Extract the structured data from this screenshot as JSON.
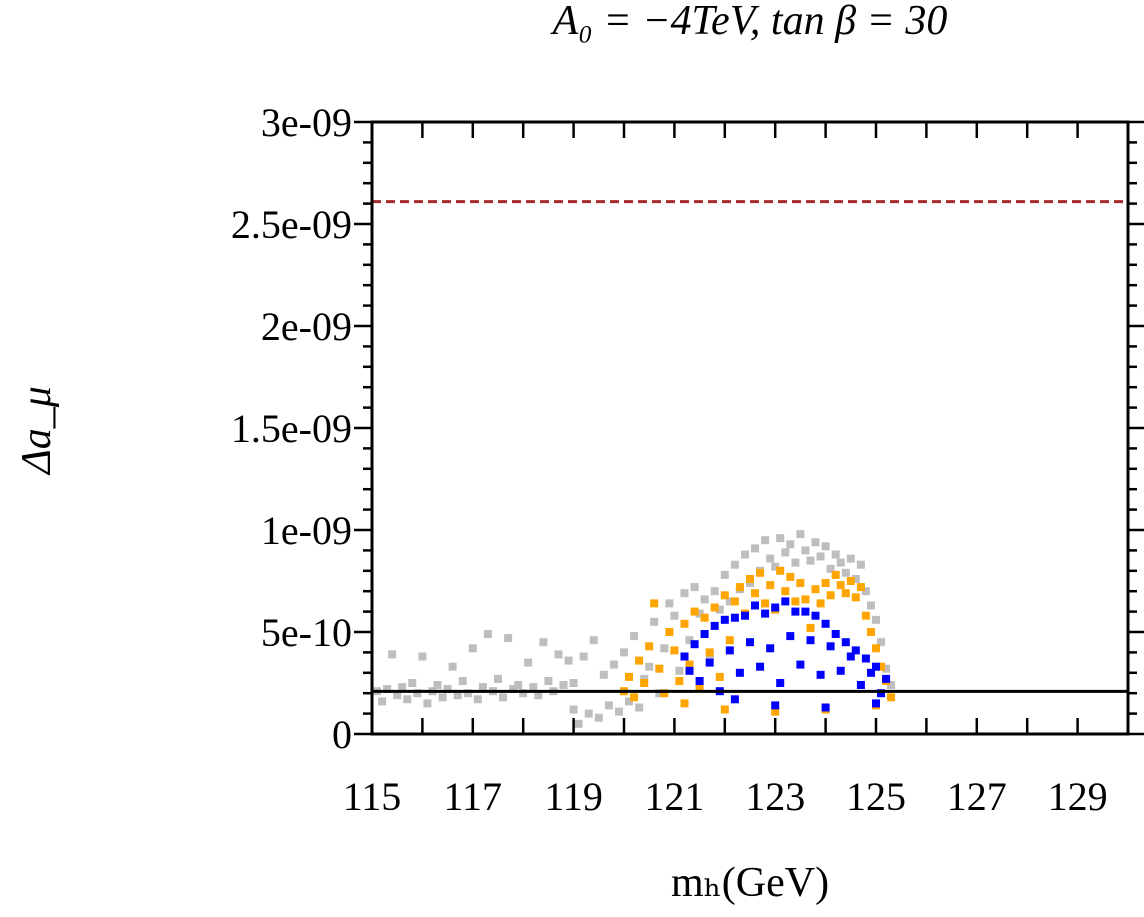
{
  "chart_data": {
    "type": "scatter",
    "title": "A₀ = −4TeV, tan β = 30",
    "xlabel": "mₕ(GeV)",
    "ylabel": "Δa_μ",
    "xlim": [
      115,
      130
    ],
    "ylim": [
      0,
      3e-09
    ],
    "x_ticks": [
      115,
      117,
      119,
      121,
      123,
      125,
      127,
      129
    ],
    "x_tick_labels": [
      "115",
      "117",
      "119",
      "121",
      "123",
      "125",
      "127",
      "129"
    ],
    "y_ticks": [
      0,
      5e-10,
      1e-09,
      1.5e-09,
      2e-09,
      2.5e-09,
      3e-09
    ],
    "y_tick_labels": [
      "0",
      "5e-10",
      "1e-09",
      "1.5e-09",
      "2e-09",
      "2.5e-09",
      "3e-09"
    ],
    "grid": false,
    "reference_lines": [
      {
        "y": 2.09e-10,
        "style": "solid",
        "color": "#000000"
      },
      {
        "y": 2.61e-09,
        "style": "dashed",
        "color": "#a52a2a"
      }
    ],
    "series": [
      {
        "color": "#bebebe",
        "points": [
          [
            115.1,
            2.1e-10
          ],
          [
            115.2,
            1.6e-10
          ],
          [
            115.3,
            2.2e-10
          ],
          [
            115.4,
            3.9e-10
          ],
          [
            115.5,
            1.9e-10
          ],
          [
            115.6,
            2.3e-10
          ],
          [
            115.7,
            1.7e-10
          ],
          [
            115.8,
            2.5e-10
          ],
          [
            115.9,
            2e-10
          ],
          [
            116.0,
            3.8e-10
          ],
          [
            116.1,
            1.5e-10
          ],
          [
            116.2,
            2.1e-10
          ],
          [
            116.3,
            2.4e-10
          ],
          [
            116.4,
            1.8e-10
          ],
          [
            116.5,
            2.2e-10
          ],
          [
            116.6,
            3.3e-10
          ],
          [
            116.7,
            1.9e-10
          ],
          [
            116.8,
            2.6e-10
          ],
          [
            116.9,
            2e-10
          ],
          [
            117.0,
            4.2e-10
          ],
          [
            117.1,
            1.7e-10
          ],
          [
            117.2,
            2.3e-10
          ],
          [
            117.3,
            4.9e-10
          ],
          [
            117.4,
            2.1e-10
          ],
          [
            117.5,
            2.7e-10
          ],
          [
            117.6,
            1.8e-10
          ],
          [
            117.7,
            4.7e-10
          ],
          [
            117.8,
            2.2e-10
          ],
          [
            117.9,
            2.4e-10
          ],
          [
            118.0,
            2e-10
          ],
          [
            118.1,
            3.5e-10
          ],
          [
            118.2,
            2.3e-10
          ],
          [
            118.3,
            1.9e-10
          ],
          [
            118.4,
            4.5e-10
          ],
          [
            118.5,
            2.6e-10
          ],
          [
            118.6,
            2.1e-10
          ],
          [
            118.7,
            3.9e-10
          ],
          [
            118.8,
            2.4e-10
          ],
          [
            118.9,
            3.6e-10
          ],
          [
            119.0,
            1.2e-10
          ],
          [
            119.0,
            2.5e-10
          ],
          [
            119.1,
            5e-11
          ],
          [
            119.2,
            3.8e-10
          ],
          [
            119.3,
            1e-10
          ],
          [
            119.4,
            4.6e-10
          ],
          [
            119.5,
            8e-11
          ],
          [
            119.6,
            2.9e-10
          ],
          [
            119.7,
            1.4e-10
          ],
          [
            119.8,
            3.4e-10
          ],
          [
            119.9,
            1.1e-10
          ],
          [
            120.0,
            4e-10
          ],
          [
            120.1,
            1.6e-10
          ],
          [
            120.2,
            4.8e-10
          ],
          [
            120.3,
            1.3e-10
          ],
          [
            120.4,
            2.7e-10
          ],
          [
            120.5,
            3.3e-10
          ],
          [
            120.6,
            5.5e-10
          ],
          [
            120.7,
            2e-10
          ],
          [
            120.8,
            4.2e-10
          ],
          [
            120.9,
            6.4e-10
          ],
          [
            121.0,
            5.8e-10
          ],
          [
            121.1,
            3.1e-10
          ],
          [
            121.2,
            6.9e-10
          ],
          [
            121.3,
            4.6e-10
          ],
          [
            121.4,
            7.2e-10
          ],
          [
            121.5,
            5.9e-10
          ],
          [
            121.6,
            6.6e-10
          ],
          [
            121.7,
            3.8e-10
          ],
          [
            121.8,
            7e-10
          ],
          [
            121.9,
            6.1e-10
          ],
          [
            122.0,
            7.8e-10
          ],
          [
            122.1,
            6.5e-10
          ],
          [
            122.2,
            8.3e-10
          ],
          [
            122.3,
            7.1e-10
          ],
          [
            122.4,
            8.8e-10
          ],
          [
            122.5,
            7.4e-10
          ],
          [
            122.6,
            9.1e-10
          ],
          [
            122.7,
            8e-10
          ],
          [
            122.8,
            9.5e-10
          ],
          [
            122.9,
            8.6e-10
          ],
          [
            123.0,
            8.2e-10
          ],
          [
            123.1,
            9.6e-10
          ],
          [
            123.2,
            8.9e-10
          ],
          [
            123.3,
            9.3e-10
          ],
          [
            123.4,
            8.4e-10
          ],
          [
            123.5,
            9.8e-10
          ],
          [
            123.6,
            9e-10
          ],
          [
            123.7,
            8.5e-10
          ],
          [
            123.8,
            9.4e-10
          ],
          [
            123.9,
            8.7e-10
          ],
          [
            124.0,
            9.2e-10
          ],
          [
            124.1,
            8.1e-10
          ],
          [
            124.2,
            8.8e-10
          ],
          [
            124.3,
            8.4e-10
          ],
          [
            124.4,
            7.9e-10
          ],
          [
            124.5,
            8.6e-10
          ],
          [
            124.6,
            7.6e-10
          ],
          [
            124.7,
            8.3e-10
          ],
          [
            124.8,
            7e-10
          ],
          [
            124.9,
            6.3e-10
          ],
          [
            125.0,
            5.6e-10
          ],
          [
            125.1,
            4.5e-10
          ],
          [
            125.2,
            3.2e-10
          ],
          [
            125.3,
            2.4e-10
          ]
        ]
      },
      {
        "color": "#ffa500",
        "points": [
          [
            120.0,
            2.1e-10
          ],
          [
            120.1,
            2.8e-10
          ],
          [
            120.2,
            1.8e-10
          ],
          [
            120.3,
            3.6e-10
          ],
          [
            120.4,
            2.5e-10
          ],
          [
            120.5,
            4.3e-10
          ],
          [
            120.6,
            6.4e-10
          ],
          [
            120.7,
            3.2e-10
          ],
          [
            120.8,
            2e-10
          ],
          [
            120.9,
            5e-10
          ],
          [
            121.0,
            4.1e-10
          ],
          [
            121.1,
            2.6e-10
          ],
          [
            121.2,
            5.4e-10
          ],
          [
            121.3,
            3.4e-10
          ],
          [
            121.4,
            6e-10
          ],
          [
            121.5,
            2.3e-10
          ],
          [
            121.6,
            5.7e-10
          ],
          [
            121.7,
            4e-10
          ],
          [
            121.8,
            6.2e-10
          ],
          [
            121.9,
            2.8e-10
          ],
          [
            122.0,
            6.8e-10
          ],
          [
            122.1,
            4.6e-10
          ],
          [
            122.2,
            6.5e-10
          ],
          [
            122.3,
            7.2e-10
          ],
          [
            122.4,
            5.9e-10
          ],
          [
            122.5,
            7.6e-10
          ],
          [
            122.6,
            6.9e-10
          ],
          [
            122.7,
            7.9e-10
          ],
          [
            122.8,
            6.4e-10
          ],
          [
            122.9,
            7.3e-10
          ],
          [
            123.0,
            6.1e-10
          ],
          [
            123.1,
            8e-10
          ],
          [
            123.2,
            7e-10
          ],
          [
            123.3,
            7.7e-10
          ],
          [
            123.4,
            6.5e-10
          ],
          [
            123.5,
            7.4e-10
          ],
          [
            123.6,
            6.6e-10
          ],
          [
            123.7,
            5.2e-10
          ],
          [
            123.8,
            7.1e-10
          ],
          [
            123.9,
            6.4e-10
          ],
          [
            124.0,
            7.4e-10
          ],
          [
            124.1,
            6.8e-10
          ],
          [
            124.2,
            7.8e-10
          ],
          [
            124.3,
            7.3e-10
          ],
          [
            124.4,
            6.9e-10
          ],
          [
            124.5,
            7.5e-10
          ],
          [
            124.6,
            6.7e-10
          ],
          [
            124.7,
            7.2e-10
          ],
          [
            124.8,
            5.8e-10
          ],
          [
            124.9,
            5e-10
          ],
          [
            125.0,
            4.2e-10
          ],
          [
            125.1,
            3.3e-10
          ],
          [
            125.2,
            2.6e-10
          ],
          [
            125.3,
            1.8e-10
          ],
          [
            121.2,
            1.5e-10
          ],
          [
            122.0,
            1.2e-10
          ],
          [
            123.0,
            1.1e-10
          ],
          [
            124.0,
            1.2e-10
          ],
          [
            125.0,
            1.4e-10
          ]
        ]
      },
      {
        "color": "#0000ff",
        "points": [
          [
            121.2,
            3.8e-10
          ],
          [
            121.3,
            3.1e-10
          ],
          [
            121.4,
            4.4e-10
          ],
          [
            121.5,
            2.6e-10
          ],
          [
            121.6,
            4.9e-10
          ],
          [
            121.7,
            3.5e-10
          ],
          [
            121.8,
            5.3e-10
          ],
          [
            121.9,
            2.1e-10
          ],
          [
            122.0,
            5.6e-10
          ],
          [
            122.1,
            4.1e-10
          ],
          [
            122.2,
            5.7e-10
          ],
          [
            122.3,
            3e-10
          ],
          [
            122.4,
            5.8e-10
          ],
          [
            122.5,
            4.5e-10
          ],
          [
            122.6,
            6.3e-10
          ],
          [
            122.7,
            3.3e-10
          ],
          [
            122.8,
            5.9e-10
          ],
          [
            122.9,
            4.2e-10
          ],
          [
            123.0,
            6.2e-10
          ],
          [
            123.1,
            2.5e-10
          ],
          [
            123.2,
            6.5e-10
          ],
          [
            123.3,
            4.8e-10
          ],
          [
            123.4,
            6e-10
          ],
          [
            123.5,
            3.4e-10
          ],
          [
            123.6,
            6e-10
          ],
          [
            123.7,
            4.6e-10
          ],
          [
            123.8,
            5.8e-10
          ],
          [
            123.9,
            2.9e-10
          ],
          [
            124.0,
            5.4e-10
          ],
          [
            124.1,
            4.3e-10
          ],
          [
            124.2,
            4.9e-10
          ],
          [
            124.3,
            3.1e-10
          ],
          [
            124.4,
            4.5e-10
          ],
          [
            124.5,
            3.8e-10
          ],
          [
            124.6,
            4.1e-10
          ],
          [
            124.7,
            2.4e-10
          ],
          [
            124.8,
            3.7e-10
          ],
          [
            124.9,
            3e-10
          ],
          [
            125.0,
            3.3e-10
          ],
          [
            125.1,
            2e-10
          ],
          [
            125.2,
            2.7e-10
          ],
          [
            122.2,
            1.7e-10
          ],
          [
            123.0,
            1.4e-10
          ],
          [
            124.0,
            1.3e-10
          ],
          [
            125.0,
            1.5e-10
          ]
        ]
      }
    ]
  },
  "colors": {
    "axis": "#000000",
    "dashed_line": "#a52a2a",
    "grey_points": "#bebebe",
    "orange_points": "#ffa500",
    "blue_points": "#0000ff"
  }
}
